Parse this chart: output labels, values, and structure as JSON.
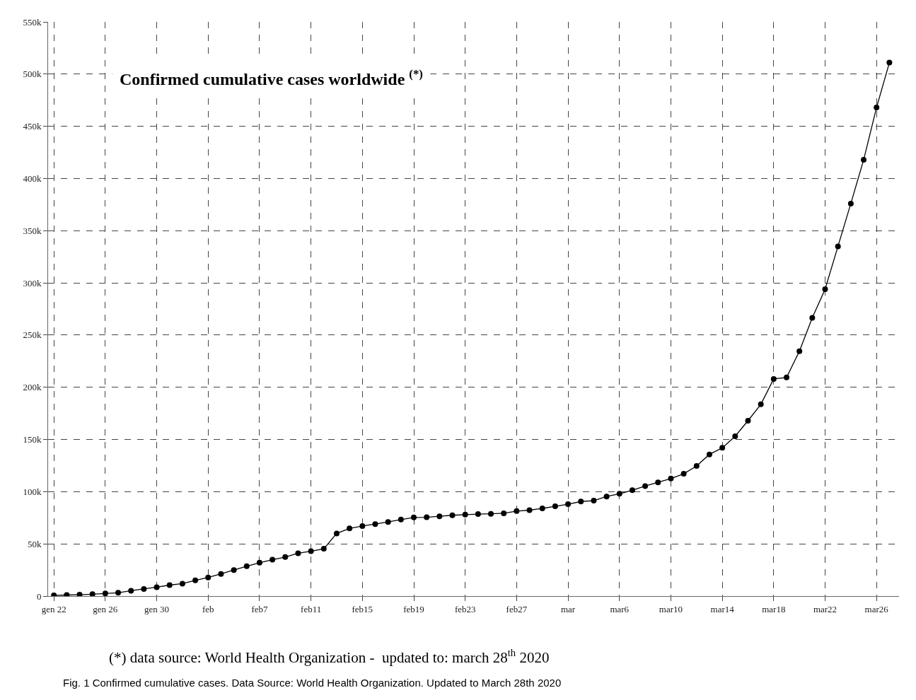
{
  "chart_data": {
    "type": "line",
    "title": "Confirmed cumulative cases worldwide $^{(*)}$",
    "categories": [
      "gen 22",
      null,
      null,
      null,
      "gen 26",
      null,
      null,
      null,
      "gen 30",
      null,
      null,
      null,
      "feb",
      null,
      null,
      null,
      "feb7",
      null,
      null,
      null,
      "feb11",
      null,
      null,
      null,
      "feb15",
      null,
      null,
      null,
      "feb19",
      null,
      null,
      null,
      "feb23",
      null,
      null,
      null,
      "feb27",
      null,
      null,
      null,
      "mar",
      null,
      null,
      null,
      "mar6",
      null,
      null,
      null,
      "mar10",
      null,
      null,
      null,
      "mar14",
      null,
      null,
      null,
      "mar18",
      null,
      null,
      null,
      "mar22",
      null,
      null,
      null,
      "mar26",
      null
    ],
    "series": [
      {
        "color": "#000000",
        "values": [
          600,
          1000,
          1300,
          1800,
          2500,
          3200,
          5100,
          6800,
          8500,
          10500,
          11900,
          15000,
          17800,
          21200,
          24900,
          28600,
          32000,
          34800,
          37400,
          41000,
          43000,
          45300,
          60000,
          64800,
          67100,
          69000,
          71000,
          73300,
          75300,
          75500,
          76400,
          77400,
          78000,
          78500,
          78800,
          79300,
          81400,
          82300,
          84000,
          86000,
          88000,
          90600,
          91400,
          95400,
          98000,
          101400,
          105400,
          108900,
          112600,
          117100,
          124600,
          135700,
          142000,
          153100,
          168000,
          183700,
          208000,
          209400,
          234600,
          266600,
          294000,
          335000,
          376000,
          418000,
          468000,
          511000
        ]
      }
    ],
    "ylim": [
      0,
      550000
    ],
    "yticks": [
      0,
      {
        "value": 50000,
        "label": "50k"
      },
      {
        "value": 100000,
        "label": "100k"
      },
      {
        "value": 150000,
        "label": "150k"
      },
      {
        "value": 200000,
        "label": "200k"
      },
      {
        "value": 250000,
        "label": "250k"
      },
      {
        "value": 300000,
        "label": "300k"
      },
      {
        "value": 350000,
        "label": "350k"
      },
      {
        "value": 400000,
        "label": "400k"
      },
      {
        "value": 450000,
        "label": "450k"
      },
      {
        "value": 500000,
        "label": "500k"
      },
      {
        "value": 550000,
        "label": "550k"
      }
    ],
    "grid": true,
    "marker": "circle",
    "line_style": "solid",
    "annotations": [
      "(*) data source: World Health Organization -  updated to: march 28$^{th}$ 2020",
      "Fig. 1 Confirmed cumulative cases. Data Source: World Health Organization. Updated to March 28th 2020"
    ]
  }
}
